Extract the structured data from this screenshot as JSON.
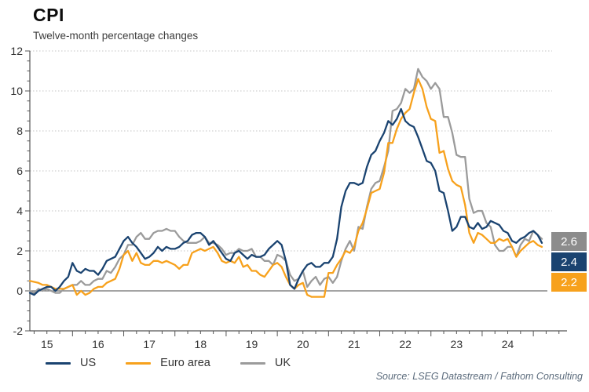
{
  "title": "CPI",
  "subtitle": "Twelve-month percentage changes",
  "source": "Source: LSEG Datastream / Fathom Consulting",
  "colors": {
    "us": "#1a4370",
    "euro_area": "#f7a11c",
    "uk": "#9b9b9b",
    "grid": "#c4c4c4",
    "axis": "#555555",
    "zero_line": "#6e6e6e",
    "tick_label": "#333333"
  },
  "legend": [
    {
      "label": "US",
      "color": "#1a4370"
    },
    {
      "label": "Euro area",
      "color": "#f7a11c"
    },
    {
      "label": "UK",
      "color": "#9b9b9b"
    }
  ],
  "end_labels": [
    {
      "series": "UK",
      "value": "2.6",
      "color": "#8c8c8c"
    },
    {
      "series": "US",
      "value": "2.4",
      "color": "#1a4370"
    },
    {
      "series": "Euro area",
      "value": "2.2",
      "color": "#f7a11c"
    }
  ],
  "chart_data": {
    "type": "line",
    "title": "CPI",
    "subtitle": "Twelve-month percentage changes",
    "x_unit": "month",
    "x_start": "2015-03",
    "x_end": "2025-03",
    "x_tick_labels": [
      "15",
      "16",
      "17",
      "18",
      "19",
      "20",
      "21",
      "22",
      "23",
      "24"
    ],
    "ylabel": "",
    "ylim": [
      -2,
      12
    ],
    "y_ticks": [
      -2,
      0,
      2,
      4,
      6,
      8,
      10,
      12
    ],
    "grid": "dotted-horizontal",
    "legend_position": "bottom",
    "series": [
      {
        "name": "US",
        "color": "#1a4370",
        "last_value": 2.4,
        "values": [
          -0.1,
          -0.2,
          0.0,
          0.1,
          0.2,
          0.2,
          0.0,
          0.2,
          0.5,
          0.7,
          1.4,
          1.0,
          0.9,
          1.1,
          1.0,
          1.0,
          0.8,
          1.1,
          1.5,
          1.6,
          1.7,
          2.1,
          2.5,
          2.7,
          2.4,
          2.2,
          1.9,
          1.6,
          1.7,
          1.9,
          2.2,
          2.0,
          2.2,
          2.1,
          2.1,
          2.2,
          2.4,
          2.5,
          2.8,
          2.9,
          2.9,
          2.7,
          2.3,
          2.5,
          2.2,
          1.9,
          1.6,
          1.5,
          1.9,
          2.0,
          1.8,
          1.6,
          1.8,
          1.7,
          1.7,
          1.8,
          2.1,
          2.3,
          2.5,
          2.3,
          1.5,
          0.3,
          0.1,
          0.6,
          1.0,
          1.3,
          1.4,
          1.2,
          1.2,
          1.4,
          1.4,
          1.7,
          2.6,
          4.2,
          5.0,
          5.4,
          5.4,
          5.3,
          5.4,
          6.2,
          6.8,
          7.0,
          7.5,
          7.9,
          8.5,
          8.3,
          8.6,
          9.1,
          8.5,
          8.3,
          8.2,
          7.7,
          7.1,
          6.5,
          6.4,
          6.0,
          5.0,
          4.9,
          4.0,
          3.0,
          3.2,
          3.7,
          3.7,
          3.2,
          3.1,
          3.4,
          3.1,
          3.2,
          3.5,
          3.4,
          3.3,
          3.0,
          2.9,
          2.5,
          2.4,
          2.6,
          2.7,
          2.9,
          3.0,
          2.8,
          2.4
        ]
      },
      {
        "name": "Euro area",
        "color": "#f7a11c",
        "last_value": 2.2,
        "values": [
          0.5,
          0.45,
          0.4,
          0.3,
          0.3,
          0.2,
          0.1,
          0.1,
          0.1,
          0.2,
          0.3,
          -0.2,
          0.0,
          -0.2,
          -0.1,
          0.1,
          0.2,
          0.2,
          0.4,
          0.5,
          0.6,
          1.1,
          1.8,
          2.0,
          1.5,
          1.9,
          1.4,
          1.3,
          1.3,
          1.5,
          1.5,
          1.4,
          1.5,
          1.4,
          1.3,
          1.1,
          1.3,
          1.3,
          1.9,
          2.0,
          2.1,
          2.0,
          2.1,
          2.2,
          1.9,
          1.5,
          1.4,
          1.5,
          1.4,
          1.7,
          1.2,
          1.3,
          1.0,
          1.0,
          0.8,
          0.7,
          1.0,
          1.3,
          1.4,
          1.2,
          0.7,
          0.3,
          0.1,
          0.3,
          0.4,
          -0.2,
          -0.3,
          -0.3,
          -0.3,
          -0.3,
          0.9,
          0.9,
          1.3,
          1.6,
          2.0,
          1.9,
          2.2,
          3.0,
          3.4,
          4.1,
          4.9,
          5.0,
          5.1,
          5.9,
          7.4,
          7.4,
          8.1,
          8.6,
          8.9,
          9.1,
          9.9,
          10.6,
          10.1,
          9.2,
          8.6,
          8.5,
          6.9,
          7.0,
          6.1,
          5.5,
          5.3,
          5.2,
          4.3,
          2.9,
          2.4,
          2.9,
          2.8,
          2.6,
          2.4,
          2.4,
          2.6,
          2.5,
          2.6,
          2.2,
          1.7,
          2.0,
          2.2,
          2.4,
          2.5,
          2.3,
          2.2
        ]
      },
      {
        "name": "UK",
        "color": "#9b9b9b",
        "last_value": 2.6,
        "values": [
          0.0,
          -0.1,
          0.1,
          0.0,
          0.1,
          0.0,
          -0.1,
          -0.1,
          0.1,
          0.2,
          0.3,
          0.3,
          0.5,
          0.3,
          0.3,
          0.5,
          0.6,
          0.6,
          1.0,
          0.9,
          1.2,
          1.6,
          1.8,
          2.3,
          2.3,
          2.7,
          2.9,
          2.6,
          2.6,
          2.9,
          3.0,
          3.0,
          3.1,
          3.0,
          3.0,
          2.7,
          2.5,
          2.4,
          2.4,
          2.4,
          2.5,
          2.7,
          2.4,
          2.4,
          2.3,
          2.1,
          1.8,
          1.9,
          1.9,
          2.1,
          2.0,
          2.0,
          2.1,
          1.7,
          1.7,
          1.5,
          1.5,
          1.3,
          1.8,
          1.7,
          1.5,
          0.8,
          0.5,
          0.6,
          1.0,
          0.2,
          0.5,
          0.7,
          0.3,
          0.6,
          0.7,
          0.4,
          0.7,
          1.5,
          2.1,
          2.5,
          2.0,
          3.2,
          3.1,
          4.2,
          5.1,
          5.4,
          5.5,
          6.2,
          7.0,
          9.0,
          9.1,
          9.4,
          10.1,
          9.9,
          10.1,
          11.1,
          10.7,
          10.5,
          10.1,
          10.4,
          10.1,
          8.7,
          8.7,
          7.9,
          6.8,
          6.7,
          6.7,
          4.6,
          3.9,
          4.0,
          4.0,
          3.4,
          3.2,
          2.3,
          2.0,
          2.0,
          2.2,
          2.2,
          1.7,
          2.3,
          2.6,
          2.5,
          3.0,
          2.8,
          2.6
        ]
      }
    ]
  }
}
